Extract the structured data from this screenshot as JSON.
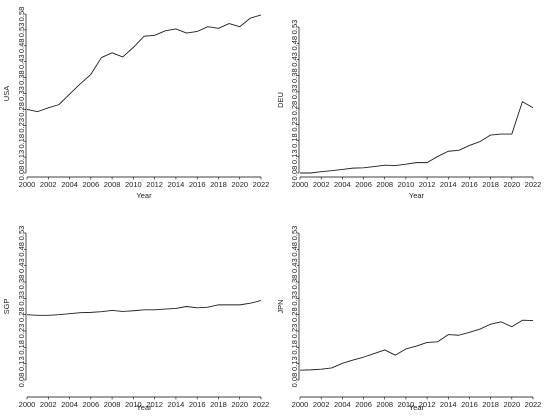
{
  "chart_data": [
    {
      "type": "line",
      "title": "",
      "xlabel": "Year",
      "ylabel": "USA",
      "xlim": [
        2000,
        2022
      ],
      "ylim": [
        0.08,
        0.58
      ],
      "xticks": [
        "2000",
        "2002",
        "2004",
        "2006",
        "2008",
        "2010",
        "2012",
        "2014",
        "2016",
        "2018",
        "2020",
        "2022"
      ],
      "yticks": [
        "0.08",
        "0.13",
        "0.18",
        "0.23",
        "0.28",
        "0.33",
        "0.38",
        "0.43",
        "0.48",
        "0.53",
        "0.58"
      ],
      "x": [
        2000,
        2001,
        2002,
        2003,
        2004,
        2005,
        2006,
        2007,
        2008,
        2009,
        2010,
        2011,
        2012,
        2013,
        2014,
        2015,
        2016,
        2017,
        2018,
        2019,
        2020,
        2021,
        2022
      ],
      "values": [
        0.28,
        0.273,
        0.285,
        0.295,
        0.328,
        0.36,
        0.39,
        0.443,
        0.458,
        0.445,
        0.475,
        0.51,
        0.513,
        0.527,
        0.533,
        0.52,
        0.525,
        0.54,
        0.535,
        0.55,
        0.54,
        0.567,
        0.577
      ],
      "grid": false,
      "line_color": "#1f1f1f"
    },
    {
      "type": "line",
      "title": "",
      "xlabel": "Year",
      "ylabel": "DEU",
      "xlim": [
        2000,
        2022
      ],
      "ylim": [
        0.08,
        0.53
      ],
      "xticks": [
        "2000",
        "2002",
        "2004",
        "2006",
        "2008",
        "2010",
        "2012",
        "2014",
        "2016",
        "2018",
        "2020",
        "2022"
      ],
      "yticks": [
        "0.08",
        "0.13",
        "0.18",
        "0.23",
        "0.28",
        "0.33",
        "0.38",
        "0.43",
        "0.48",
        "0.53"
      ],
      "x": [
        2000,
        2001,
        2002,
        2003,
        2004,
        2005,
        2006,
        2007,
        2008,
        2009,
        2010,
        2011,
        2012,
        2013,
        2014,
        2015,
        2016,
        2017,
        2018,
        2019,
        2020,
        2021,
        2022
      ],
      "values": [
        0.08,
        0.08,
        0.084,
        0.087,
        0.091,
        0.095,
        0.096,
        0.1,
        0.104,
        0.103,
        0.107,
        0.112,
        0.112,
        0.131,
        0.147,
        0.15,
        0.165,
        0.177,
        0.197,
        0.2,
        0.2,
        0.3,
        0.281
      ],
      "grid": false,
      "line_color": "#1f1f1f"
    },
    {
      "type": "line",
      "title": "",
      "xlabel": "Year",
      "ylabel": "SGP",
      "xlim": [
        2000,
        2022
      ],
      "ylim": [
        0.08,
        0.53
      ],
      "xticks": [
        "2000",
        "2002",
        "2004",
        "2006",
        "2008",
        "2010",
        "2012",
        "2014",
        "2016",
        "2018",
        "2020",
        "2022"
      ],
      "yticks": [
        "0.08",
        "0.13",
        "0.18",
        "0.23",
        "0.28",
        "0.33",
        "0.38",
        "0.43",
        "0.48",
        "0.53"
      ],
      "x": [
        2000,
        2001,
        2002,
        2003,
        2004,
        2005,
        2006,
        2007,
        2008,
        2009,
        2010,
        2011,
        2012,
        2013,
        2014,
        2015,
        2016,
        2017,
        2018,
        2019,
        2020,
        2021,
        2022
      ],
      "values": [
        0.28,
        0.278,
        0.278,
        0.28,
        0.283,
        0.286,
        0.287,
        0.289,
        0.293,
        0.29,
        0.292,
        0.295,
        0.295,
        0.297,
        0.299,
        0.305,
        0.301,
        0.303,
        0.31,
        0.31,
        0.31,
        0.315,
        0.323
      ],
      "grid": false,
      "line_color": "#1f1f1f"
    },
    {
      "type": "line",
      "title": "",
      "xlabel": "Year",
      "ylabel": "JPN",
      "xlim": [
        2000,
        2022
      ],
      "ylim": [
        0.08,
        0.53
      ],
      "xticks": [
        "2000",
        "2002",
        "2004",
        "2006",
        "2008",
        "2010",
        "2012",
        "2014",
        "2016",
        "2018",
        "2020",
        "2022"
      ],
      "yticks": [
        "0.08",
        "0.13",
        "0.18",
        "0.23",
        "0.28",
        "0.33",
        "0.38",
        "0.43",
        "0.48",
        "0.53"
      ],
      "x": [
        2000,
        2001,
        2002,
        2003,
        2004,
        2005,
        2006,
        2007,
        2008,
        2009,
        2010,
        2011,
        2012,
        2013,
        2014,
        2015,
        2016,
        2017,
        2018,
        2019,
        2020,
        2021,
        2022
      ],
      "values": [
        0.11,
        0.111,
        0.113,
        0.117,
        0.131,
        0.141,
        0.15,
        0.161,
        0.172,
        0.156,
        0.175,
        0.184,
        0.195,
        0.197,
        0.219,
        0.217,
        0.226,
        0.236,
        0.251,
        0.258,
        0.243,
        0.263,
        0.262
      ],
      "grid": false,
      "line_color": "#1f1f1f"
    }
  ]
}
